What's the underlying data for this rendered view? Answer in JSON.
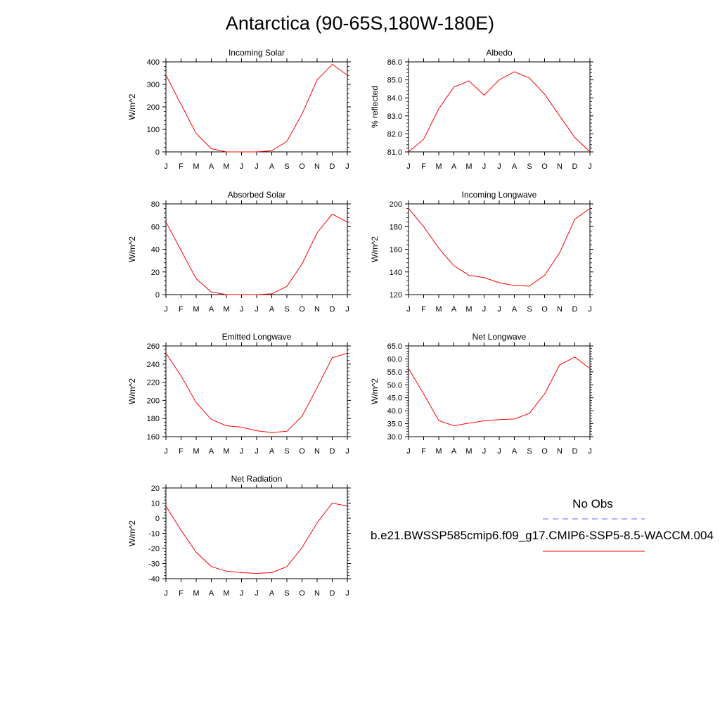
{
  "page_title": "Antarctica (90-65S,180W-180E)",
  "months": [
    "J",
    "F",
    "M",
    "A",
    "M",
    "J",
    "J",
    "A",
    "S",
    "O",
    "N",
    "D",
    "J"
  ],
  "line_color": "#ff0000",
  "obs_color": "#6666ff",
  "legend": {
    "obs_label": "No Obs",
    "model_label": "b.e21.BWSSP585cmip6.f09_g17.CMIP6-SSP5-8.5-WACCM.004"
  },
  "chart_data": [
    {
      "type": "line",
      "title": "Incoming Solar",
      "ylabel": "W/m^2",
      "ylim": [
        0,
        400
      ],
      "yticks": [
        0,
        100,
        200,
        300,
        400
      ],
      "ytick_labels": [
        "0",
        "100",
        "200",
        "300",
        "400"
      ],
      "series": [
        {
          "values": [
            341,
            211,
            82,
            14,
            0,
            0,
            0,
            5,
            47,
            168,
            320,
            389,
            341
          ]
        }
      ]
    },
    {
      "type": "line",
      "title": "Albedo",
      "ylabel": "% reflected",
      "ylim": [
        81.0,
        86.0
      ],
      "yticks": [
        81.0,
        82.0,
        83.0,
        84.0,
        85.0,
        86.0
      ],
      "ytick_labels": [
        "81.0",
        "82.0",
        "83.0",
        "84.0",
        "85.0",
        "86.0"
      ],
      "series": [
        {
          "values": [
            81.0,
            81.7,
            83.4,
            84.6,
            84.95,
            84.15,
            85.0,
            85.45,
            85.1,
            84.2,
            83.0,
            81.8,
            81.0
          ]
        }
      ]
    },
    {
      "type": "line",
      "title": "Absorbed Solar",
      "ylabel": "W/m^2",
      "ylim": [
        0,
        80
      ],
      "yticks": [
        0,
        20,
        40,
        60,
        80
      ],
      "ytick_labels": [
        "0",
        "20",
        "40",
        "60",
        "80"
      ],
      "series": [
        {
          "values": [
            64,
            39,
            14,
            2.3,
            0,
            0,
            0,
            0.7,
            7.3,
            27,
            54.5,
            71,
            64
          ]
        }
      ]
    },
    {
      "type": "line",
      "title": "Incoming Longwave",
      "ylabel": "W/m^2",
      "ylim": [
        120,
        200
      ],
      "yticks": [
        120,
        140,
        160,
        180,
        200
      ],
      "ytick_labels": [
        "120",
        "140",
        "160",
        "180",
        "200"
      ],
      "series": [
        {
          "values": [
            196,
            180,
            161,
            145.5,
            137,
            135,
            130.5,
            128,
            127.5,
            137,
            157,
            186.5,
            196
          ]
        }
      ]
    },
    {
      "type": "line",
      "title": "Emitted Longwave",
      "ylabel": "W/m^2",
      "ylim": [
        160,
        260
      ],
      "yticks": [
        160,
        180,
        200,
        220,
        240,
        260
      ],
      "ytick_labels": [
        "160",
        "180",
        "200",
        "220",
        "240",
        "260"
      ],
      "series": [
        {
          "values": [
            252,
            227,
            197.5,
            179,
            172,
            170.5,
            166.5,
            164.5,
            166,
            182.5,
            214,
            247,
            252
          ]
        }
      ]
    },
    {
      "type": "line",
      "title": "Net Longwave",
      "ylabel": "W/m^2",
      "ylim": [
        30.0,
        65.0
      ],
      "yticks": [
        30.0,
        35.0,
        40.0,
        45.0,
        50.0,
        55.0,
        60.0,
        65.0
      ],
      "ytick_labels": [
        "30.0",
        "35.0",
        "40.0",
        "45.0",
        "50.0",
        "55.0",
        "60.0",
        "65.0"
      ],
      "series": [
        {
          "values": [
            56.3,
            46.5,
            36.2,
            34.2,
            35.2,
            36.1,
            36.6,
            36.8,
            39.0,
            46.5,
            57.7,
            60.7,
            56.3
          ]
        }
      ]
    },
    {
      "type": "line",
      "title": "Net Radiation",
      "ylabel": "W/m^2",
      "ylim": [
        -40,
        20
      ],
      "yticks": [
        -40,
        -30,
        -20,
        -10,
        0,
        10,
        20
      ],
      "ytick_labels": [
        "-40",
        "-30",
        "-20",
        "-10",
        "0",
        "10",
        "20"
      ],
      "series": [
        {
          "values": [
            8,
            -8,
            -22.5,
            -32,
            -35,
            -36,
            -36.5,
            -36,
            -32,
            -19.5,
            -3,
            10,
            8
          ]
        }
      ]
    }
  ]
}
